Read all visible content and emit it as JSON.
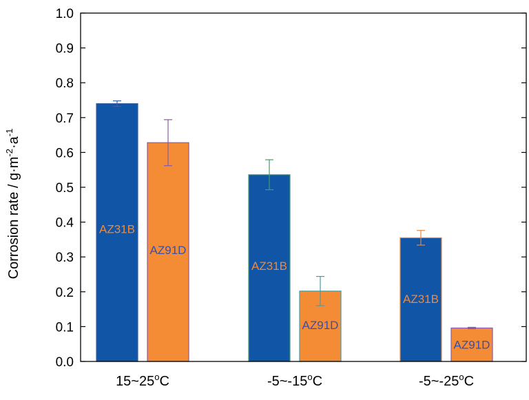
{
  "chart_data": {
    "type": "bar",
    "ylabel": "Corrosion rate / g·m",
    "ylabel_sup1": "-2",
    "ylabel_mid": "·a",
    "ylabel_sup2": "-1",
    "ylim": [
      0,
      1.0
    ],
    "yticks": [
      "0.0",
      "0.1",
      "0.2",
      "0.3",
      "0.4",
      "0.5",
      "0.6",
      "0.7",
      "0.8",
      "0.9",
      "1.0"
    ],
    "categories": [
      {
        "main": "15~25",
        "sup": "o",
        "unit": "C"
      },
      {
        "main": "-5~-15",
        "sup": "o",
        "unit": "C"
      },
      {
        "main": "-5~-25",
        "sup": "o",
        "unit": "C"
      }
    ],
    "series": [
      {
        "name": "AZ31B",
        "color": "#1155a6",
        "label_color": "#f0883a",
        "values": [
          0.74,
          0.536,
          0.355
        ],
        "errors": [
          0.008,
          0.043,
          0.021
        ],
        "labels": [
          "AZ31B",
          "AZ31B",
          "AZ31B"
        ],
        "label_at": [
          0.38,
          0.275,
          0.18
        ],
        "bar_borders": [
          "#3a5fa0",
          "#4a9a6a",
          "#e08a4a"
        ]
      },
      {
        "name": "AZ91D",
        "color": "#f48c35",
        "label_color": "#3b4ea8",
        "values": [
          0.628,
          0.202,
          0.096
        ],
        "errors": [
          0.066,
          0.042,
          0.002
        ],
        "labels": [
          "AZ91D",
          "AZ91D",
          "AZ91D"
        ],
        "label_at": [
          0.32,
          0.105,
          0.048
        ],
        "bar_borders": [
          "#8a5aa8",
          "#4a9aa0",
          "#8a5aa8"
        ]
      }
    ]
  }
}
